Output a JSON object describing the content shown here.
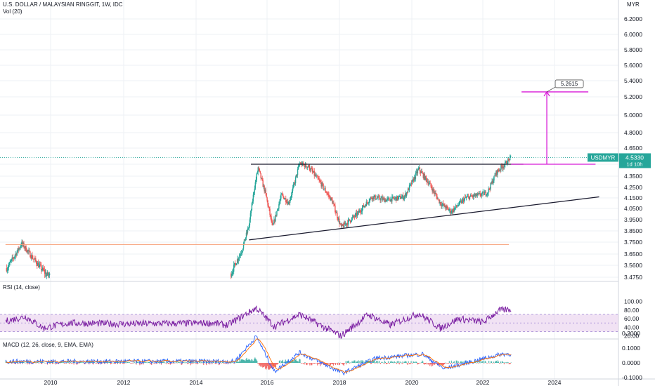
{
  "header": {
    "symbol_line": "U.S. DOLLAR / MALAYSIAN RINGGIT, 1W, IDC",
    "volume_line": "Vol (20)",
    "currency": "MYR"
  },
  "colors": {
    "up": "#26a69a",
    "down": "#ef5350",
    "rsi_line": "#7b1fa2",
    "rsi_band": "#e1bee7",
    "macd_line": "#2962ff",
    "signal_line": "#ff6d00",
    "target_line": "#d81bd8",
    "trend_line": "#1a1a2e",
    "support_line": "#f7a07a",
    "badge": "#26a69a"
  },
  "price_panel": {
    "tick_labels": [
      "6.2000",
      "6.0000",
      "5.8000",
      "5.6000",
      "5.4000",
      "5.2000",
      "5.0000",
      "4.8000",
      "4.6500",
      "4.4500",
      "4.3500",
      "4.2500",
      "4.1500",
      "4.0500",
      "3.9500",
      "3.8500",
      "3.7500",
      "3.6500",
      "3.5600",
      "3.4750"
    ],
    "last_symbol": "USDMYR",
    "last_price": "4.5330",
    "countdown": "1d 10h",
    "target_label": "5.2615"
  },
  "rsi_panel": {
    "title": "RSI (14, close)",
    "tick_labels": [
      "100.00",
      "80.00",
      "60.00",
      "40.00",
      "20.00"
    ]
  },
  "macd_panel": {
    "title": "MACD (12, 26, close, 9, EMA, EMA)",
    "tick_labels": [
      "0.2000",
      "0.1000",
      "0.0000",
      "-0.1000"
    ]
  },
  "time_axis": {
    "labels": [
      "2010",
      "2012",
      "2014",
      "2016",
      "2018",
      "2020",
      "2022",
      "2024"
    ]
  },
  "chart_data": {
    "type": "candlestick",
    "title": "U.S. DOLLAR / MALAYSIAN RINGGIT, 1W, IDC",
    "x_range": [
      2008.75,
      2025.4
    ],
    "price_anchors": [
      {
        "x": 2008.8,
        "y": 3.54
      },
      {
        "x": 2009.05,
        "y": 3.66
      },
      {
        "x": 2009.2,
        "y": 3.74
      },
      {
        "x": 2009.45,
        "y": 3.64
      },
      {
        "x": 2009.7,
        "y": 3.55
      },
      {
        "x": 2009.9,
        "y": 3.49
      },
      {
        "x": 2015.0,
        "y": 3.5
      },
      {
        "x": 2015.3,
        "y": 3.68
      },
      {
        "x": 2015.5,
        "y": 3.9
      },
      {
        "x": 2015.65,
        "y": 4.25
      },
      {
        "x": 2015.75,
        "y": 4.42
      },
      {
        "x": 2015.95,
        "y": 4.2
      },
      {
        "x": 2016.15,
        "y": 3.88
      },
      {
        "x": 2016.4,
        "y": 4.18
      },
      {
        "x": 2016.6,
        "y": 4.1
      },
      {
        "x": 2016.9,
        "y": 4.46
      },
      {
        "x": 2017.15,
        "y": 4.43
      },
      {
        "x": 2017.5,
        "y": 4.28
      },
      {
        "x": 2017.8,
        "y": 4.12
      },
      {
        "x": 2018.05,
        "y": 3.88
      },
      {
        "x": 2018.5,
        "y": 4.0
      },
      {
        "x": 2018.9,
        "y": 4.16
      },
      {
        "x": 2019.3,
        "y": 4.13
      },
      {
        "x": 2019.8,
        "y": 4.16
      },
      {
        "x": 2020.2,
        "y": 4.41
      },
      {
        "x": 2020.5,
        "y": 4.28
      },
      {
        "x": 2020.8,
        "y": 4.1
      },
      {
        "x": 2021.1,
        "y": 4.02
      },
      {
        "x": 2021.5,
        "y": 4.15
      },
      {
        "x": 2021.9,
        "y": 4.18
      },
      {
        "x": 2022.1,
        "y": 4.2
      },
      {
        "x": 2022.35,
        "y": 4.38
      },
      {
        "x": 2022.6,
        "y": 4.46
      },
      {
        "x": 2022.75,
        "y": 4.533
      }
    ],
    "rsi_anchors": [
      {
        "x": 2008.8,
        "y": 55
      },
      {
        "x": 2009.3,
        "y": 65
      },
      {
        "x": 2009.8,
        "y": 38
      },
      {
        "x": 2010.5,
        "y": 50
      },
      {
        "x": 2012,
        "y": 48
      },
      {
        "x": 2014.5,
        "y": 50
      },
      {
        "x": 2014.9,
        "y": 45
      },
      {
        "x": 2015.7,
        "y": 85
      },
      {
        "x": 2016.2,
        "y": 42
      },
      {
        "x": 2016.9,
        "y": 70
      },
      {
        "x": 2018.05,
        "y": 20
      },
      {
        "x": 2018.8,
        "y": 70
      },
      {
        "x": 2019.4,
        "y": 45
      },
      {
        "x": 2020.2,
        "y": 72
      },
      {
        "x": 2020.8,
        "y": 38
      },
      {
        "x": 2021.3,
        "y": 60
      },
      {
        "x": 2022.0,
        "y": 52
      },
      {
        "x": 2022.4,
        "y": 78
      },
      {
        "x": 2022.75,
        "y": 82
      }
    ],
    "macd_anchors": [
      {
        "x": 2008.8,
        "y": 0.01
      },
      {
        "x": 2015.1,
        "y": 0.01
      },
      {
        "x": 2015.7,
        "y": 0.18
      },
      {
        "x": 2016.2,
        "y": -0.06
      },
      {
        "x": 2016.9,
        "y": 0.07
      },
      {
        "x": 2018.1,
        "y": -0.07
      },
      {
        "x": 2019.0,
        "y": 0.03
      },
      {
        "x": 2020.3,
        "y": 0.06
      },
      {
        "x": 2020.9,
        "y": -0.04
      },
      {
        "x": 2022.5,
        "y": 0.06
      },
      {
        "x": 2022.75,
        "y": 0.06
      }
    ],
    "resistance": {
      "x": [
        2015.55,
        2023.1
      ],
      "y": [
        4.45,
        4.45
      ]
    },
    "support_trend": {
      "x": [
        2015.5,
        2025.2
      ],
      "y": [
        3.77,
        4.16
      ]
    },
    "old_support": {
      "x": [
        2008.75,
        2022.7
      ],
      "y": [
        3.73,
        3.73
      ]
    },
    "target_projection": {
      "x": 2023.75,
      "from": 4.45,
      "to": 5.2615,
      "label": "5.2615"
    },
    "target_level": {
      "x": [
        2023.05,
        2024.9
      ],
      "y": 5.2615
    }
  }
}
